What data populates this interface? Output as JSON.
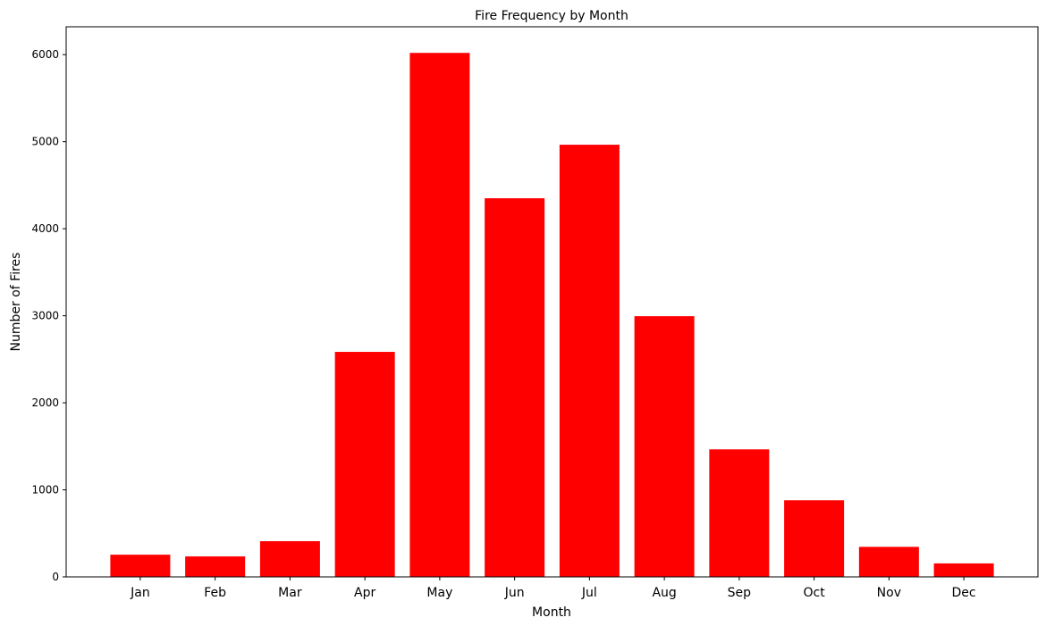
{
  "chart_data": {
    "type": "bar",
    "title": "Fire Frequency by Month",
    "xlabel": "Month",
    "ylabel": "Number of Fires",
    "categories": [
      "Jan",
      "Feb",
      "Mar",
      "Apr",
      "May",
      "Jun",
      "Jul",
      "Aug",
      "Sep",
      "Oct",
      "Nov",
      "Dec"
    ],
    "values": [
      255,
      235,
      410,
      2585,
      6020,
      4350,
      4965,
      2995,
      1465,
      880,
      345,
      155
    ],
    "ylim": [
      0,
      6320
    ],
    "yticks": [
      0,
      1000,
      2000,
      3000,
      4000,
      5000,
      6000
    ],
    "grid": false,
    "legend": "none",
    "bar_color": "#ff0000"
  }
}
